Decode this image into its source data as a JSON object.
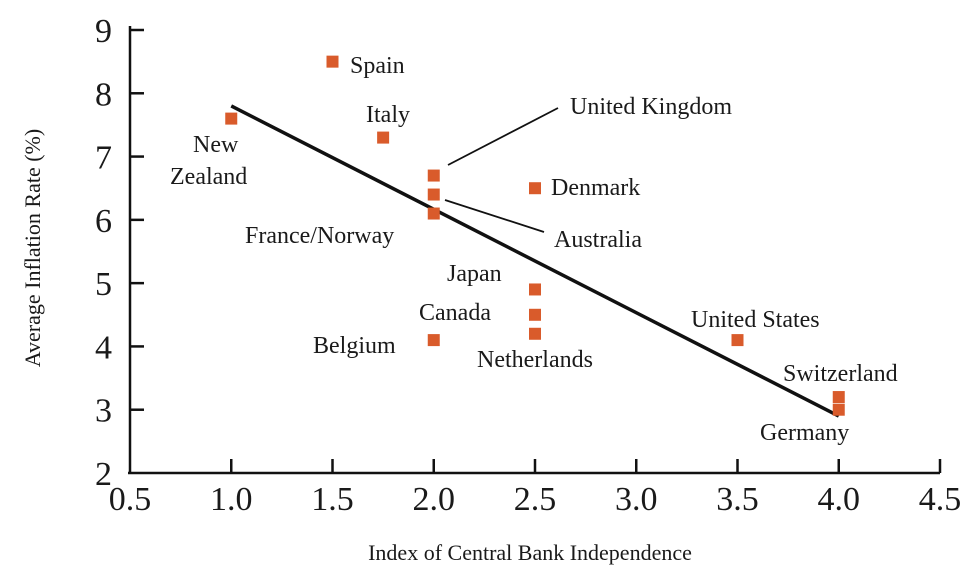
{
  "chart_data": {
    "type": "scatter",
    "xlabel": "Index of Central Bank Independence",
    "ylabel": "Average Inflation Rate (%)",
    "xlim": [
      0.5,
      4.5
    ],
    "ylim": [
      2,
      9
    ],
    "x_ticks": [
      "0.5",
      "1.0",
      "1.5",
      "2.0",
      "2.5",
      "3.0",
      "3.5",
      "4.0",
      "4.5"
    ],
    "y_ticks": [
      "2",
      "3",
      "4",
      "5",
      "6",
      "7",
      "8",
      "9"
    ],
    "marker_color": "#d95b2b",
    "points": [
      {
        "x": 1.5,
        "y": 8.5
      },
      {
        "x": 1.0,
        "y": 7.6
      },
      {
        "x": 1.75,
        "y": 7.3
      },
      {
        "x": 2.0,
        "y": 6.7
      },
      {
        "x": 2.0,
        "y": 6.4
      },
      {
        "x": 2.0,
        "y": 6.1
      },
      {
        "x": 2.5,
        "y": 6.5
      },
      {
        "x": 2.5,
        "y": 4.9
      },
      {
        "x": 2.5,
        "y": 4.5
      },
      {
        "x": 2.5,
        "y": 4.2
      },
      {
        "x": 2.0,
        "y": 4.1
      },
      {
        "x": 3.5,
        "y": 4.1
      },
      {
        "x": 4.0,
        "y": 3.2
      },
      {
        "x": 4.0,
        "y": 3.0
      }
    ],
    "labels": [
      {
        "text": "Spain"
      },
      {
        "text": "Italy"
      },
      {
        "text": "New"
      },
      {
        "text": "Zealand"
      },
      {
        "text": "United Kingdom"
      },
      {
        "text": "Denmark"
      },
      {
        "text": "Australia"
      },
      {
        "text": "France/Norway"
      },
      {
        "text": "Japan"
      },
      {
        "text": "Canada"
      },
      {
        "text": "Netherlands"
      },
      {
        "text": "Belgium"
      },
      {
        "text": "United States"
      },
      {
        "text": "Switzerland"
      },
      {
        "text": "Germany"
      }
    ],
    "trend_line": {
      "x": [
        1.0,
        4.0
      ],
      "y": [
        7.8,
        2.9
      ]
    }
  }
}
